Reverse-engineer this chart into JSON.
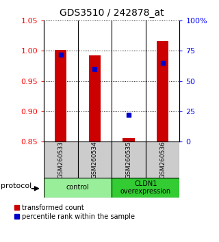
{
  "title": "GDS3510 / 242878_at",
  "samples": [
    "GSM260533",
    "GSM260534",
    "GSM260535",
    "GSM260536"
  ],
  "transformed_counts": [
    1.001,
    0.993,
    0.856,
    1.016
  ],
  "percentile_ranks_pct": [
    72,
    60,
    22,
    65
  ],
  "ylim_left": [
    0.85,
    1.05
  ],
  "ylim_right": [
    0,
    100
  ],
  "yticks_left": [
    0.85,
    0.9,
    0.95,
    1.0,
    1.05
  ],
  "yticks_right": [
    0,
    25,
    50,
    75,
    100
  ],
  "ytick_labels_right": [
    "0",
    "25",
    "50",
    "75",
    "100%"
  ],
  "bar_bottom": 0.85,
  "bar_color": "#cc0000",
  "dot_color": "#0000cc",
  "groups": [
    {
      "label": "control",
      "samples": [
        0,
        1
      ],
      "color": "#99ee99"
    },
    {
      "label": "CLDN1\noverexpression",
      "samples": [
        2,
        3
      ],
      "color": "#33cc33"
    }
  ],
  "protocol_label": "protocol",
  "legend_bar_label": "transformed count",
  "legend_dot_label": "percentile rank within the sample",
  "bar_width": 0.35,
  "title_fontsize": 10,
  "tick_fontsize": 8,
  "label_fontsize": 8
}
